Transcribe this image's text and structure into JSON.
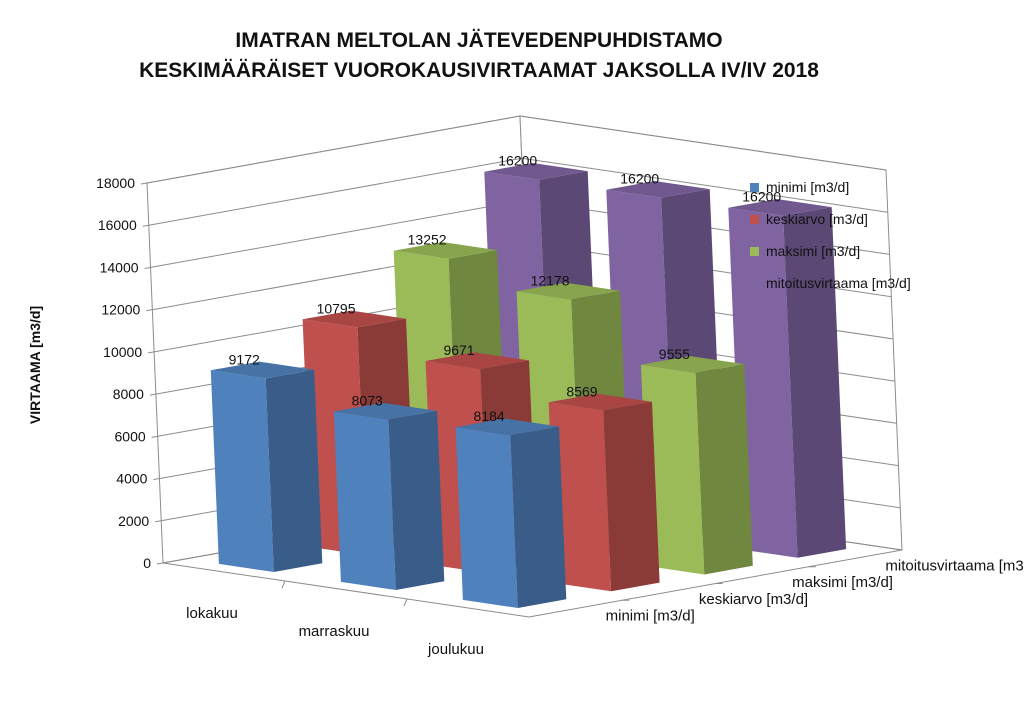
{
  "chart_data": {
    "type": "bar",
    "title_lines": [
      "IMATRAN MELTOLAN JÄTEVEDENPUHDISTAMO",
      "KESKIMÄÄRÄISET VUOROKAUSIVIRTAAMAT JAKSOLLA IV/IV 2018"
    ],
    "ylabel": "VIRTAAMA [m3/d]",
    "ylim": [
      0,
      18000
    ],
    "yticks": [
      "0",
      "2000",
      "4000",
      "6000",
      "8000",
      "10000",
      "12000",
      "14000",
      "16000",
      "18000"
    ],
    "categories": [
      "lokakuu",
      "marraskuu",
      "joulukuu"
    ],
    "depth_labels": [
      "minimi [m3/d]",
      "keskiarvo [m3/d]",
      "maksimi [m3/d]",
      "mitoitusvirtaama [m3/d]"
    ],
    "legend_position": "right",
    "grid": true,
    "series": [
      {
        "name": "minimi [m3/d]",
        "color": "#4F81BD",
        "values": [
          9172,
          8073,
          8184
        ]
      },
      {
        "name": "keskiarvo [m3/d]",
        "color": "#C0504D",
        "values": [
          10795,
          9671,
          8569
        ]
      },
      {
        "name": "maksimi [m3/d]",
        "color": "#9BBB59",
        "values": [
          13252,
          12178,
          9555
        ]
      },
      {
        "name": "mitoitusvirtaama [m3/d]",
        "color": "#8064A2",
        "values": [
          16200,
          16200,
          16200
        ]
      }
    ]
  }
}
